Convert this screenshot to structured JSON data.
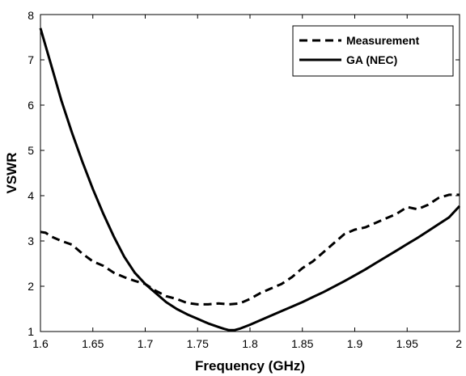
{
  "chart_data": {
    "type": "line",
    "title": "",
    "xlabel": "Frequency (GHz)",
    "ylabel": "VSWR",
    "xlim": [
      1.6,
      2.0
    ],
    "ylim": [
      1,
      8
    ],
    "xticks": [
      "1.6",
      "1.65",
      "1.7",
      "1.75",
      "1.8",
      "1.85",
      "1.9",
      "1.95",
      "2"
    ],
    "yticks": [
      "1",
      "2",
      "3",
      "4",
      "5",
      "6",
      "7",
      "8"
    ],
    "grid": false,
    "legend_position": "top-right",
    "series": [
      {
        "name": "Measurement",
        "style": "dashed",
        "color": "#000000",
        "x": [
          1.6,
          1.605,
          1.61,
          1.62,
          1.63,
          1.64,
          1.65,
          1.66,
          1.67,
          1.68,
          1.69,
          1.7,
          1.71,
          1.72,
          1.73,
          1.74,
          1.75,
          1.76,
          1.77,
          1.78,
          1.79,
          1.8,
          1.81,
          1.82,
          1.83,
          1.84,
          1.85,
          1.86,
          1.87,
          1.88,
          1.89,
          1.9,
          1.91,
          1.92,
          1.93,
          1.94,
          1.95,
          1.96,
          1.97,
          1.98,
          1.99,
          2.0
        ],
        "y": [
          3.2,
          3.18,
          3.1,
          3.0,
          2.92,
          2.72,
          2.55,
          2.45,
          2.3,
          2.2,
          2.12,
          2.05,
          1.9,
          1.78,
          1.72,
          1.63,
          1.6,
          1.6,
          1.62,
          1.6,
          1.62,
          1.72,
          1.85,
          1.95,
          2.05,
          2.2,
          2.4,
          2.55,
          2.75,
          2.95,
          3.15,
          3.25,
          3.3,
          3.4,
          3.5,
          3.6,
          3.75,
          3.7,
          3.8,
          3.95,
          4.02,
          4.02
        ]
      },
      {
        "name": "GA (NEC)",
        "style": "solid",
        "color": "#000000",
        "x": [
          1.6,
          1.61,
          1.62,
          1.63,
          1.64,
          1.65,
          1.66,
          1.67,
          1.68,
          1.69,
          1.7,
          1.71,
          1.72,
          1.73,
          1.74,
          1.75,
          1.76,
          1.77,
          1.775,
          1.78,
          1.785,
          1.79,
          1.8,
          1.81,
          1.82,
          1.83,
          1.84,
          1.85,
          1.86,
          1.87,
          1.88,
          1.89,
          1.9,
          1.91,
          1.92,
          1.93,
          1.94,
          1.95,
          1.96,
          1.97,
          1.98,
          1.99,
          2.0
        ],
        "y": [
          7.7,
          6.9,
          6.1,
          5.4,
          4.75,
          4.15,
          3.6,
          3.1,
          2.65,
          2.3,
          2.05,
          1.85,
          1.65,
          1.5,
          1.38,
          1.28,
          1.18,
          1.1,
          1.06,
          1.03,
          1.03,
          1.06,
          1.15,
          1.25,
          1.35,
          1.45,
          1.55,
          1.65,
          1.76,
          1.87,
          1.99,
          2.11,
          2.24,
          2.37,
          2.51,
          2.65,
          2.79,
          2.93,
          3.07,
          3.22,
          3.37,
          3.52,
          3.77
        ]
      }
    ]
  }
}
